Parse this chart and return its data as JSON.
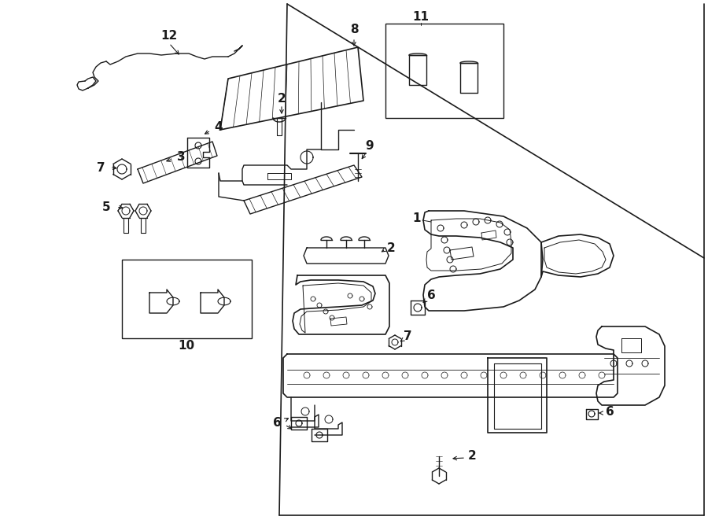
{
  "bg_color": "#ffffff",
  "line_color": "#1a1a1a",
  "fig_width": 9.0,
  "fig_height": 6.61,
  "dpi": 100,
  "label_fs": 11,
  "line_width": 1.0
}
